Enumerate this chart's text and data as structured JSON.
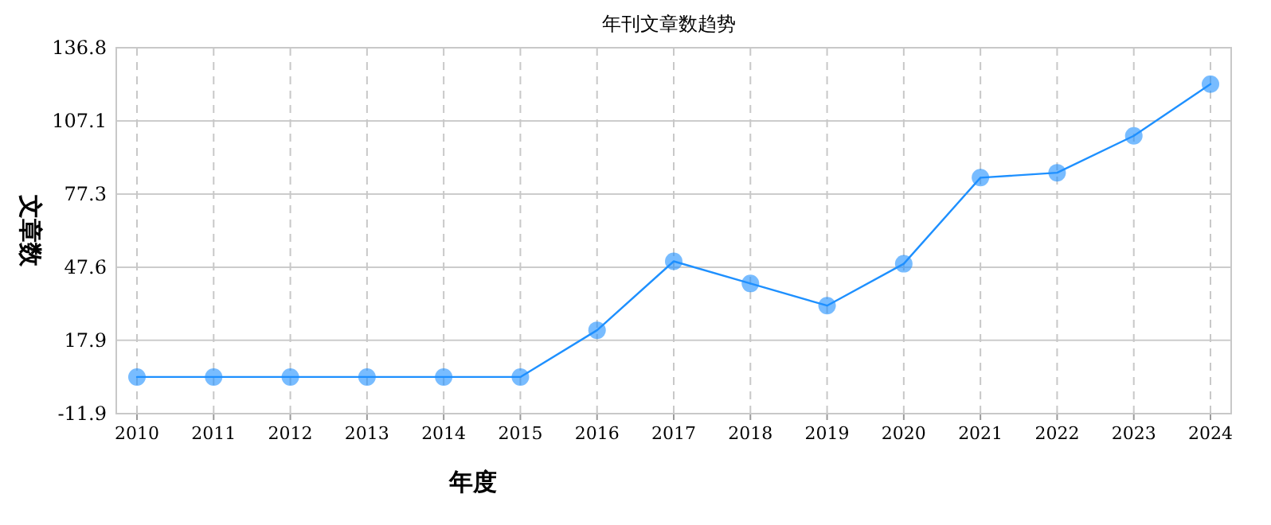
{
  "chart_data": {
    "type": "line",
    "title": "年刊文章数趋势",
    "xlabel": "年度",
    "ylabel": "文章数",
    "categories": [
      "2010",
      "2011",
      "2012",
      "2013",
      "2014",
      "2015",
      "2016",
      "2017",
      "2018",
      "2019",
      "2020",
      "2021",
      "2022",
      "2023",
      "2024"
    ],
    "series": [
      {
        "color": "#1e90ff",
        "values": [
          3,
          3,
          3,
          3,
          3,
          3,
          22,
          50,
          41,
          32,
          49,
          84,
          86,
          101,
          122
        ]
      }
    ],
    "ylim": [
      -11.9,
      136.8
    ],
    "yticks": [
      -11.9,
      17.9,
      47.6,
      77.3,
      107.1,
      136.8
    ],
    "grid": true,
    "marker": "circle",
    "line_style": "solid"
  }
}
